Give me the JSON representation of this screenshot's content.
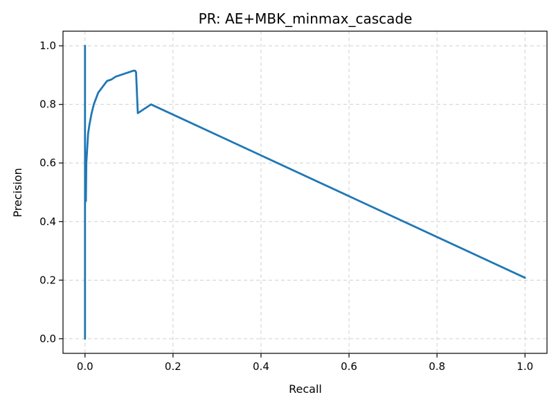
{
  "chart_data": {
    "type": "line",
    "title": "PR: AE+MBK_minmax_cascade",
    "xlabel": "Recall",
    "ylabel": "Precision",
    "xlim": [
      -0.05,
      1.05
    ],
    "ylim": [
      -0.05,
      1.05
    ],
    "grid": true,
    "x_ticks": [
      0.0,
      0.2,
      0.4,
      0.6,
      0.8,
      1.0
    ],
    "y_ticks": [
      0.0,
      0.2,
      0.4,
      0.6,
      0.8,
      1.0
    ],
    "x_tick_labels": [
      "0.0",
      "0.2",
      "0.4",
      "0.6",
      "0.8",
      "1.0"
    ],
    "y_tick_labels": [
      "0.0",
      "0.2",
      "0.4",
      "0.6",
      "0.8",
      "1.0"
    ],
    "series": [
      {
        "color": "#1f77b4",
        "x": [
          0.0,
          0.0,
          0.0,
          0.001,
          0.002,
          0.003,
          0.005,
          0.007,
          0.01,
          0.015,
          0.02,
          0.03,
          0.04,
          0.05,
          0.06,
          0.07,
          0.08,
          0.09,
          0.1,
          0.11,
          0.114,
          0.116,
          0.12,
          0.13,
          0.15,
          1.0
        ],
        "y": [
          1.0,
          0.0,
          0.45,
          0.55,
          0.47,
          0.6,
          0.65,
          0.7,
          0.73,
          0.77,
          0.8,
          0.84,
          0.86,
          0.88,
          0.885,
          0.895,
          0.9,
          0.905,
          0.91,
          0.915,
          0.915,
          0.91,
          0.77,
          0.78,
          0.8,
          0.208
        ]
      }
    ]
  }
}
